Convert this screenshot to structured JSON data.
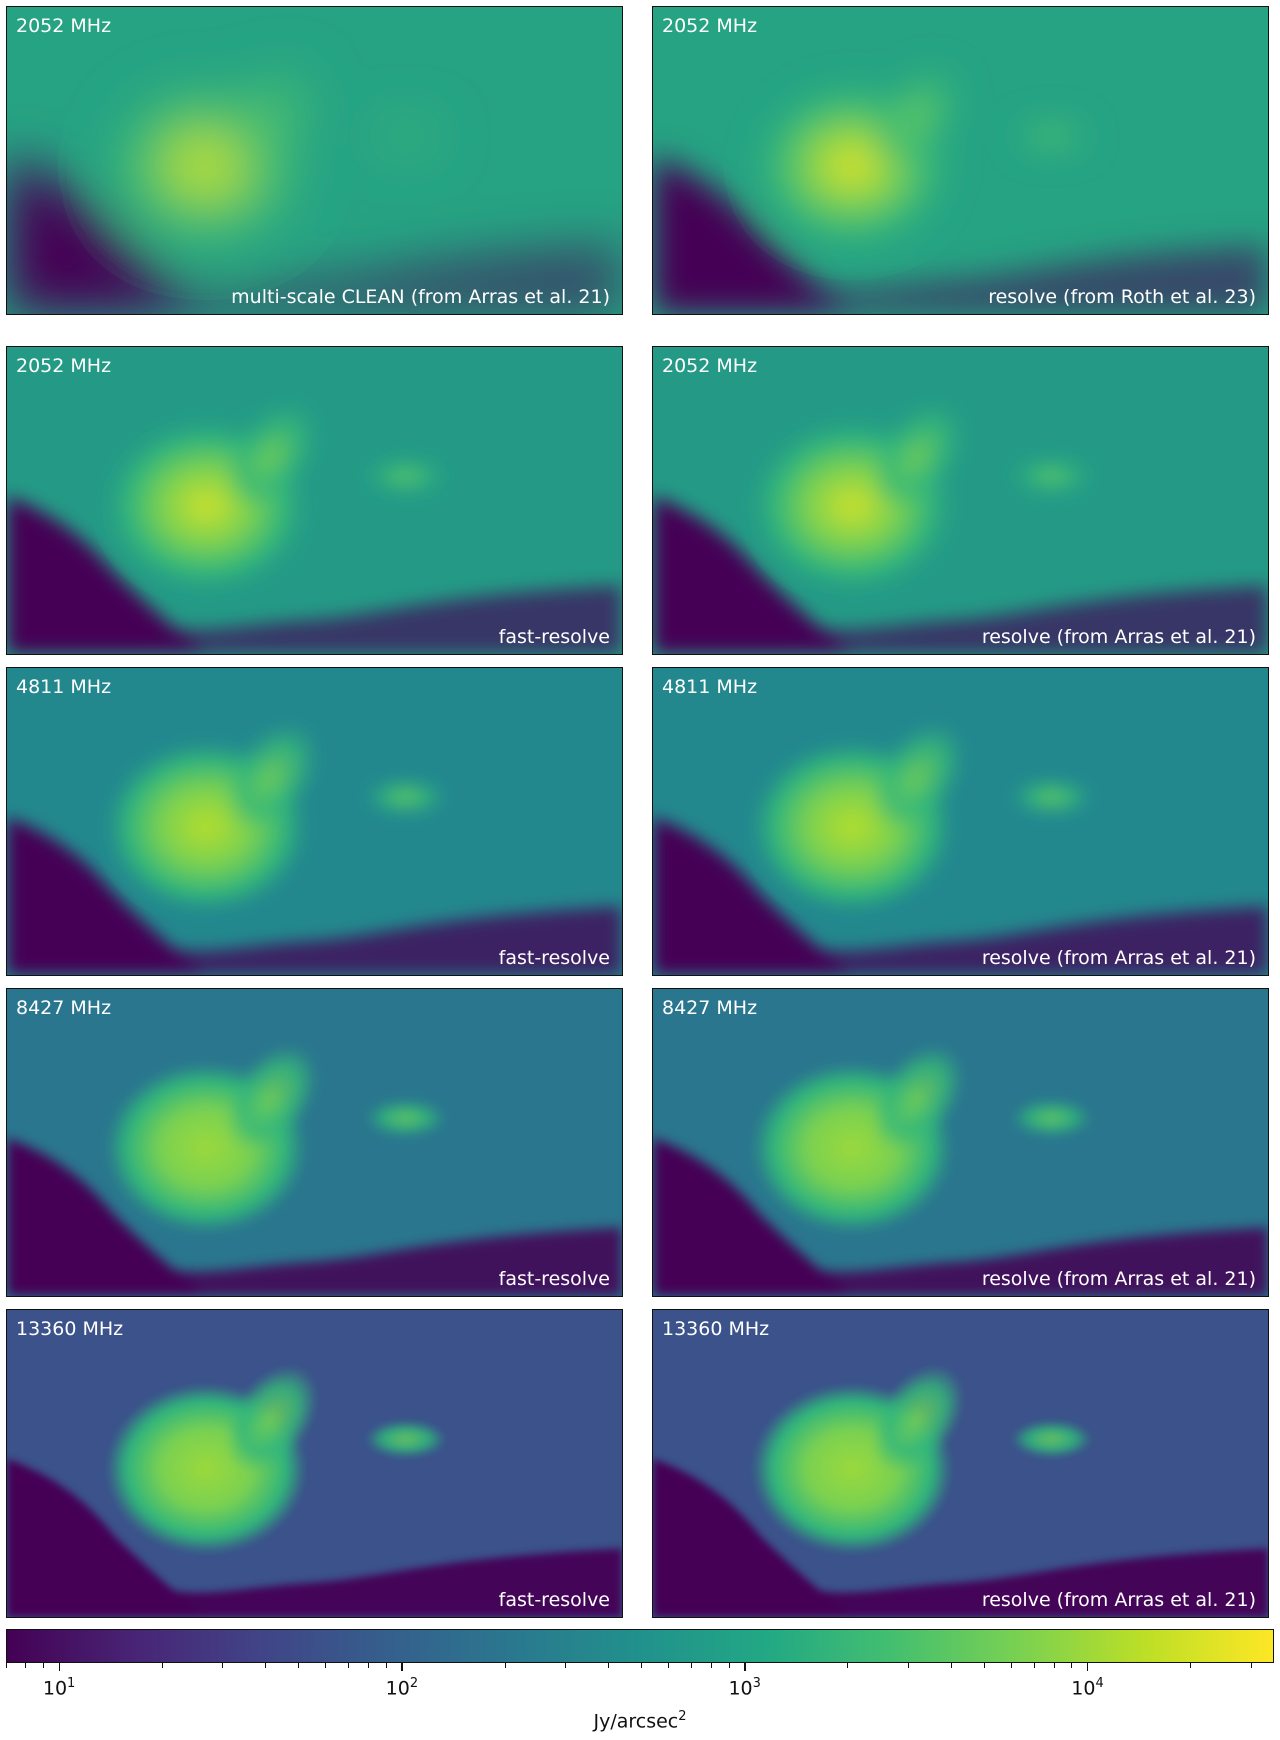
{
  "panels": [
    {
      "freq": "2052 MHz",
      "method": "multi-scale CLEAN (from Arras et al. 21)"
    },
    {
      "freq": "2052 MHz",
      "method": "resolve (from Roth et al. 23)"
    },
    {
      "freq": "2052 MHz",
      "method": "fast-resolve"
    },
    {
      "freq": "2052 MHz",
      "method": "resolve (from Arras et al. 21)"
    },
    {
      "freq": "4811 MHz",
      "method": "fast-resolve"
    },
    {
      "freq": "4811 MHz",
      "method": "resolve (from Arras et al. 21)"
    },
    {
      "freq": "8427 MHz",
      "method": "fast-resolve"
    },
    {
      "freq": "8427 MHz",
      "method": "resolve (from Arras et al. 21)"
    },
    {
      "freq": "13360 MHz",
      "method": "fast-resolve"
    },
    {
      "freq": "13360 MHz",
      "method": "resolve (from Arras et al. 21)"
    }
  ],
  "colorbar": {
    "colormap": "viridis",
    "scale": "log",
    "range": [
      7,
      35000
    ],
    "tick_base": "10",
    "tick_exponents": [
      "1",
      "2",
      "3",
      "4"
    ],
    "label_main": "Jy/arcsec",
    "label_exp": "2"
  },
  "colors": {
    "low": "#440154",
    "mid": "#21918c",
    "high": "#fde725"
  }
}
